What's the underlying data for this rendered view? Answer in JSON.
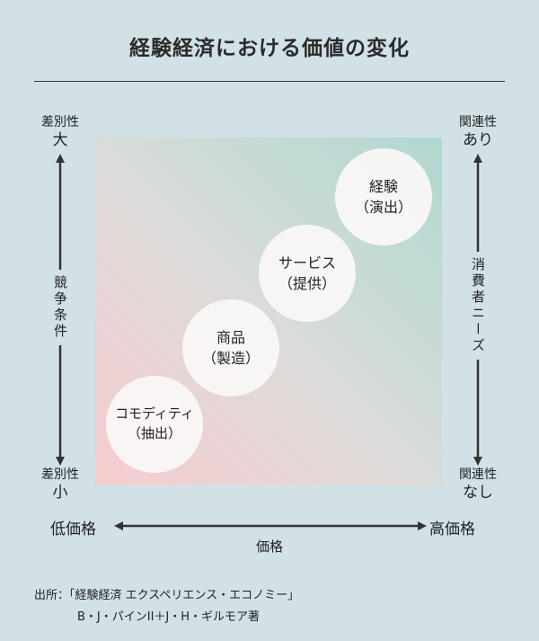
{
  "title": "経験経済における価値の変化",
  "left_axis": {
    "top_small": "差別性",
    "top_big": "大",
    "label": "競争条件",
    "bottom_small": "差別性",
    "bottom_big": "小"
  },
  "right_axis": {
    "top_small": "関連性",
    "top_big": "あり",
    "label": "消費者ニーズ",
    "bottom_small": "関連性",
    "bottom_big": "なし"
  },
  "bottom_axis": {
    "left": "低価格",
    "right": "高価格",
    "label": "価格"
  },
  "stages": [
    {
      "line1": "コモディティ",
      "line2": "（抽出）"
    },
    {
      "line1": "商品",
      "line2": "（製造）"
    },
    {
      "line1": "サービス",
      "line2": "（提供）"
    },
    {
      "line1": "経験",
      "line2": "（演出）"
    }
  ],
  "source": {
    "line1": "出所：「経験経済 エクスペリエンス・エコノミー」",
    "line2": "B・J・パインII＋J・H・ギルモア著"
  },
  "colors": {
    "background": "#d1e1e6",
    "gradient_low": "#f6ccce",
    "gradient_high": "#b0d8d0",
    "arrow": "#333333"
  }
}
